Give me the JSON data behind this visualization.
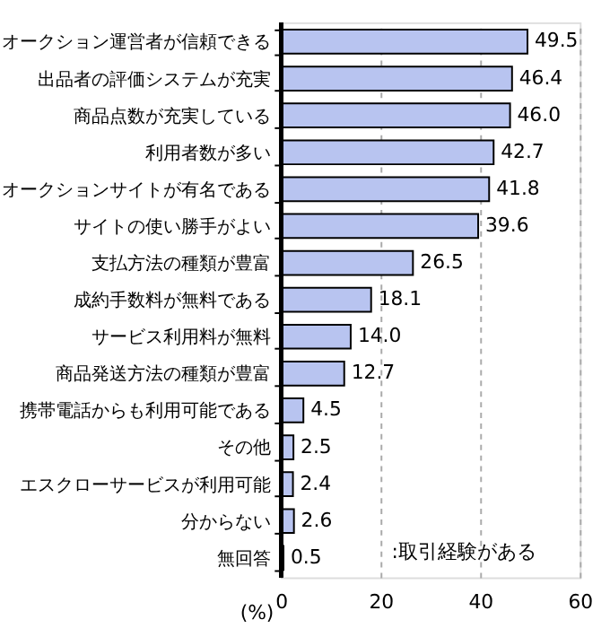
{
  "chart_data": {
    "type": "bar",
    "orientation": "horizontal",
    "xlabel": "(%)",
    "categories": [
      "オークション運営者が信頼できる",
      "出品者の評価システムが充実",
      "商品点数が充実している",
      "利用者数が多い",
      "オークションサイトが有名である",
      "サイトの使い勝手がよい",
      "支払方法の種類が豊富",
      "成約手数料が無料である",
      "サービス利用料が無料",
      "商品発送方法の種類が豊富",
      "携帯電話からも利用可能である",
      "その他",
      "エスクローサービスが利用可能",
      "分からない",
      "無回答"
    ],
    "series": [
      {
        "color": "#b8c4f0",
        "values": [
          49.5,
          46.4,
          46.0,
          42.7,
          41.8,
          39.6,
          26.5,
          18.1,
          14.0,
          12.7,
          4.5,
          2.5,
          2.4,
          2.6,
          0.5
        ],
        "value_labels": [
          "49.5",
          "46.4",
          "46.0",
          "42.7",
          "41.8",
          "39.6",
          "26.5",
          "18.1",
          "14.0",
          "12.7",
          "4.5",
          "2.5",
          "2.4",
          "2.6",
          "0.5"
        ]
      }
    ],
    "annotations": [
      ":取引経験がある"
    ],
    "xlim": [
      0,
      60
    ],
    "xticks": [
      0,
      20,
      40,
      60
    ],
    "grid": "x"
  }
}
